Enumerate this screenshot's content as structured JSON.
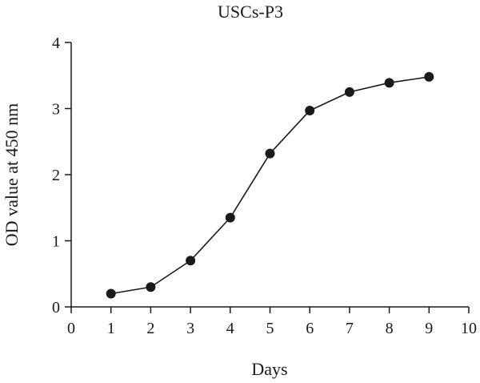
{
  "chart_data": {
    "type": "line",
    "title": "USCs-P3",
    "xlabel": "Days",
    "ylabel": "OD value at 450 nm",
    "xlim": [
      0,
      10
    ],
    "ylim": [
      0,
      4
    ],
    "x_ticks": [
      "0",
      "1",
      "2",
      "3",
      "4",
      "5",
      "6",
      "7",
      "8",
      "9",
      "10"
    ],
    "y_ticks": [
      "0",
      "1",
      "2",
      "3",
      "4"
    ],
    "grid": false,
    "legend": "none",
    "series": [
      {
        "color": "#1a1a1a",
        "marker": "filled-circle",
        "x": [
          1,
          2,
          3,
          4,
          5,
          6,
          7,
          8,
          9
        ],
        "y": [
          0.2,
          0.3,
          0.7,
          1.35,
          2.32,
          2.97,
          3.25,
          3.39,
          3.48
        ]
      }
    ]
  }
}
